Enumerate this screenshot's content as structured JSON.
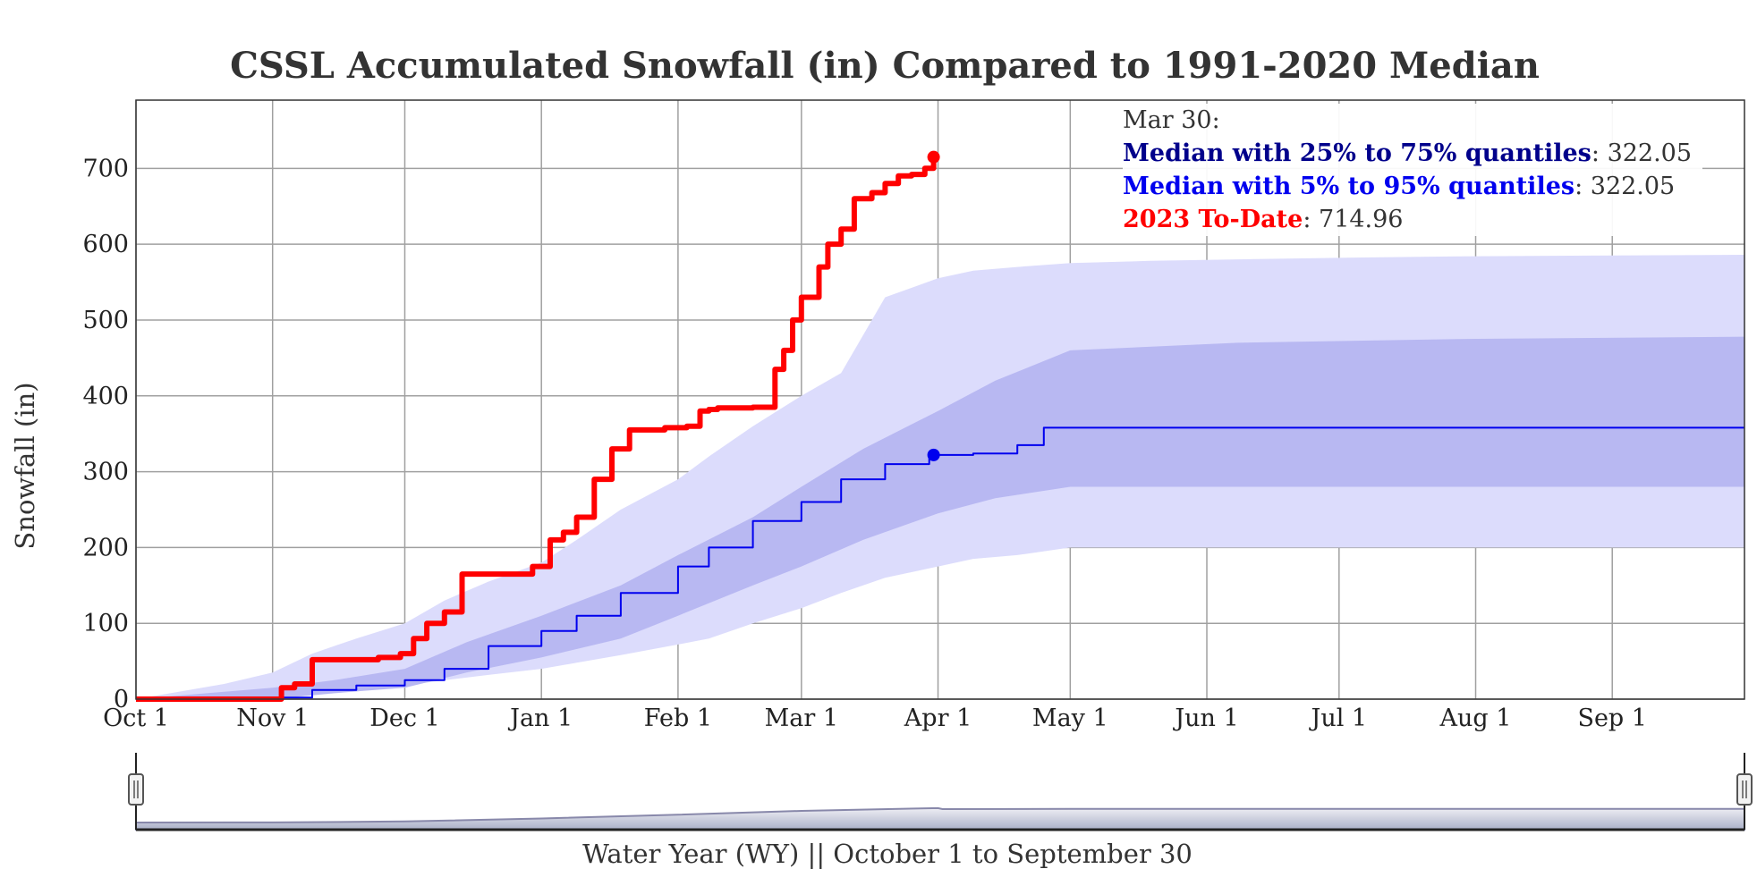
{
  "chart_data": {
    "type": "area",
    "title": "CSSL Accumulated Snowfall (in) Compared to 1991-2020 Median",
    "xlabel": "Water Year (WY) || October 1 to September 30",
    "ylabel": "Snowfall (in)",
    "xlim": [
      0,
      365
    ],
    "ylim": [
      0,
      790
    ],
    "x_ticks": [
      {
        "label": "Oct 1",
        "day": 0
      },
      {
        "label": "Nov 1",
        "day": 31
      },
      {
        "label": "Dec 1",
        "day": 61
      },
      {
        "label": "Jan 1",
        "day": 92
      },
      {
        "label": "Feb 1",
        "day": 123
      },
      {
        "label": "Mar 1",
        "day": 151
      },
      {
        "label": "Apr 1",
        "day": 182
      },
      {
        "label": "May 1",
        "day": 212
      },
      {
        "label": "Jun 1",
        "day": 243
      },
      {
        "label": "Jul 1",
        "day": 273
      },
      {
        "label": "Aug 1",
        "day": 304
      },
      {
        "label": "Sep 1",
        "day": 335
      }
    ],
    "y_ticks": [
      0,
      100,
      200,
      300,
      400,
      500,
      600,
      700
    ],
    "grid": true,
    "series": [
      {
        "name": "Median with 5% to 95% quantiles",
        "kind": "band",
        "color": "#dcdcfc",
        "x": [
          0,
          10,
          20,
          31,
          40,
          50,
          61,
          70,
          80,
          92,
          100,
          110,
          123,
          130,
          140,
          151,
          160,
          165,
          170,
          182,
          190,
          200,
          212,
          230,
          250,
          273,
          300,
          330,
          365
        ],
        "lower": [
          0,
          0,
          0,
          0,
          5,
          10,
          18,
          25,
          32,
          40,
          48,
          58,
          72,
          80,
          100,
          120,
          140,
          150,
          160,
          175,
          185,
          190,
          200,
          200,
          200,
          200,
          200,
          200,
          200
        ],
        "upper": [
          0,
          10,
          20,
          35,
          60,
          80,
          100,
          130,
          155,
          180,
          210,
          250,
          290,
          320,
          360,
          400,
          430,
          480,
          530,
          555,
          565,
          570,
          575,
          578,
          580,
          582,
          584,
          585,
          586
        ]
      },
      {
        "name": "Median with 25% to 75% quantiles",
        "kind": "band",
        "color": "#b8b8f2",
        "x": [
          0,
          31,
          45,
          61,
          75,
          92,
          110,
          123,
          140,
          151,
          165,
          182,
          195,
          212,
          250,
          300,
          365
        ],
        "lower": [
          0,
          0,
          8,
          15,
          35,
          55,
          80,
          110,
          150,
          175,
          210,
          245,
          265,
          280,
          280,
          280,
          280
        ],
        "upper": [
          0,
          15,
          25,
          40,
          75,
          110,
          150,
          190,
          240,
          280,
          330,
          380,
          420,
          460,
          470,
          475,
          478
        ]
      },
      {
        "name": "Median",
        "kind": "line",
        "color": "#0000ee",
        "x": [
          0,
          31,
          40,
          50,
          61,
          70,
          80,
          92,
          100,
          110,
          123,
          130,
          140,
          151,
          160,
          170,
          180,
          190,
          200,
          206,
          220,
          365
        ],
        "values": [
          0,
          2,
          12,
          18,
          25,
          40,
          70,
          90,
          110,
          140,
          175,
          200,
          235,
          260,
          290,
          310,
          322,
          324,
          335,
          358,
          358,
          358
        ],
        "marker": {
          "x": 181,
          "y": 322.05
        }
      },
      {
        "name": "2023 To-Date",
        "kind": "line",
        "color": "#ff0000",
        "x": [
          0,
          30,
          33,
          36,
          40,
          55,
          60,
          63,
          66,
          70,
          74,
          80,
          85,
          90,
          94,
          97,
          100,
          104,
          108,
          112,
          115,
          120,
          125,
          128,
          130,
          132,
          135,
          140,
          145,
          147,
          149,
          151,
          153,
          155,
          157,
          160,
          163,
          167,
          170,
          173,
          176,
          179,
          181
        ],
        "values": [
          0,
          0,
          15,
          20,
          52,
          55,
          60,
          80,
          100,
          115,
          165,
          165,
          165,
          175,
          210,
          220,
          240,
          290,
          330,
          355,
          355,
          358,
          360,
          380,
          382,
          384,
          384,
          385,
          435,
          460,
          500,
          530,
          530,
          570,
          600,
          620,
          660,
          668,
          680,
          690,
          692,
          700,
          715
        ],
        "marker": {
          "x": 181,
          "y": 714.96
        }
      }
    ],
    "navigator_note": "range selector overview below chart"
  },
  "legend": {
    "date": "Mar 30:",
    "rows": [
      {
        "label": "Median with 25% to 75% quantiles",
        "value": "322.05",
        "color": "#00008b"
      },
      {
        "label": "Median with 5% to 95% quantiles",
        "value": "322.05",
        "color": "#0000ee"
      },
      {
        "label": "2023 To-Date",
        "value": "714.96",
        "color": "#ff0000"
      }
    ]
  }
}
